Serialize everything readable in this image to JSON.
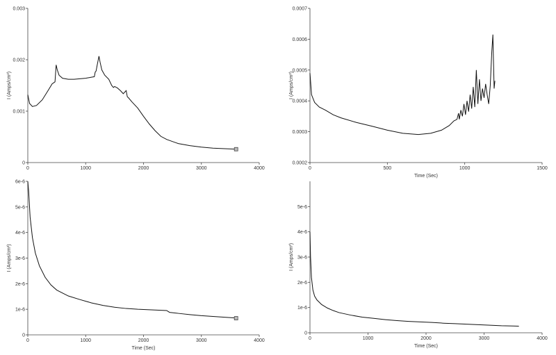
{
  "chart_data": [
    {
      "type": "line",
      "title": "",
      "xlabel": "",
      "ylabel": "I (Amps/cm²)",
      "xlim": [
        0,
        4000
      ],
      "ylim": [
        0,
        0.003
      ],
      "x_ticks": [
        0,
        1000,
        2000,
        3000,
        4000
      ],
      "x_tick_labels": [
        "0",
        "1000",
        "2000",
        "3000",
        "4000"
      ],
      "y_ticks": [
        0,
        0.001,
        0.002,
        0.003
      ],
      "y_tick_labels": [
        "0",
        "0.001",
        "0.002",
        "0.003"
      ],
      "grid": false,
      "end_marker": [
        3600,
        0.00026
      ],
      "series": [
        {
          "x": [
            0,
            30,
            80,
            150,
            250,
            350,
            420,
            470,
            490,
            510,
            540,
            600,
            700,
            800,
            900,
            1000,
            1100,
            1150,
            1165,
            1180,
            1200,
            1230,
            1250,
            1280,
            1330,
            1400,
            1450,
            1480,
            1500,
            1550,
            1600,
            1650,
            1700,
            1720,
            1740,
            1800,
            1900,
            2000,
            2100,
            2200,
            2300,
            2400,
            2500,
            2600,
            2800,
            3000,
            3200,
            3400,
            3600
          ],
          "y": [
            0.00132,
            0.00115,
            0.00109,
            0.00111,
            0.00122,
            0.0014,
            0.00153,
            0.00157,
            0.0019,
            0.0018,
            0.0017,
            0.00164,
            0.00162,
            0.00162,
            0.00163,
            0.00164,
            0.00166,
            0.00167,
            0.00176,
            0.00178,
            0.0019,
            0.00207,
            0.00195,
            0.0018,
            0.0017,
            0.00162,
            0.0015,
            0.00146,
            0.00148,
            0.00145,
            0.0014,
            0.00134,
            0.0014,
            0.00128,
            0.00126,
            0.00118,
            0.00106,
            0.0009,
            0.00075,
            0.00062,
            0.00051,
            0.00045,
            0.00041,
            0.00037,
            0.00033,
            0.0003,
            0.00028,
            0.00027,
            0.00026
          ]
        }
      ]
    },
    {
      "type": "line",
      "title": "",
      "xlabel": "Time (Sec)",
      "ylabel": "I (Amps/cm²)",
      "xlim": [
        0,
        1500
      ],
      "ylim": [
        0.0002,
        0.0007
      ],
      "x_ticks": [
        0,
        500,
        1000,
        1500
      ],
      "x_tick_labels": [
        "0",
        "500",
        "1000",
        "1500"
      ],
      "y_ticks": [
        0.0002,
        0.0003,
        0.0004,
        0.0005,
        0.0006,
        0.0007
      ],
      "y_tick_labels": [
        "0.0002",
        "0.0003",
        "0.0004",
        "0.0005",
        "0.0006",
        "0.0007"
      ],
      "grid": false,
      "series": [
        {
          "x": [
            0,
            10,
            30,
            60,
            100,
            150,
            200,
            300,
            400,
            500,
            600,
            700,
            780,
            850,
            900,
            930,
            950,
            960,
            965,
            975,
            985,
            995,
            1005,
            1015,
            1025,
            1035,
            1045,
            1055,
            1065,
            1075,
            1085,
            1095,
            1105,
            1115,
            1125,
            1135,
            1145,
            1155,
            1165,
            1175,
            1182,
            1190,
            1195
          ],
          "y": [
            0.00049,
            0.00042,
            0.000395,
            0.00038,
            0.00037,
            0.000355,
            0.000345,
            0.00033,
            0.000318,
            0.000305,
            0.000295,
            0.000291,
            0.000295,
            0.000305,
            0.00032,
            0.000335,
            0.00034,
            0.00036,
            0.00034,
            0.00037,
            0.00035,
            0.00039,
            0.000355,
            0.0004,
            0.000365,
            0.00042,
            0.000375,
            0.000445,
            0.00038,
            0.0005,
            0.00039,
            0.00047,
            0.0004,
            0.00044,
            0.00041,
            0.000455,
            0.00042,
            0.00039,
            0.00045,
            0.00056,
            0.000615,
            0.00044,
            0.000465
          ]
        }
      ]
    },
    {
      "type": "line",
      "title": "",
      "xlabel": "Time (Sec)",
      "ylabel": "I (Amps/cm²)",
      "xlim": [
        0,
        4000
      ],
      "ylim": [
        0,
        6e-06
      ],
      "x_ticks": [
        0,
        1000,
        2000,
        3000,
        4000
      ],
      "x_tick_labels": [
        "0",
        "1000",
        "2000",
        "3000",
        "4000"
      ],
      "y_ticks": [
        0,
        1e-06,
        2e-06,
        3e-06,
        4e-06,
        5e-06,
        6e-06
      ],
      "y_tick_labels": [
        "0",
        "1e-6",
        "2e-6",
        "3e-6",
        "4e-6",
        "5e-6",
        "6e-6"
      ],
      "grid": false,
      "end_marker": [
        3600,
        6.5e-07
      ],
      "series": [
        {
          "x": [
            0,
            15,
            40,
            80,
            130,
            200,
            300,
            400,
            500,
            700,
            900,
            1100,
            1300,
            1500,
            1700,
            1900,
            2100,
            2300,
            2400,
            2450,
            2600,
            2800,
            3000,
            3200,
            3400,
            3600
          ],
          "y": [
            6e-06,
            5.6e-06,
            4.6e-06,
            3.8e-06,
            3.2e-06,
            2.7e-06,
            2.25e-06,
            1.95e-06,
            1.75e-06,
            1.52e-06,
            1.38e-06,
            1.25e-06,
            1.15e-06,
            1.08e-06,
            1.03e-06,
            1e-06,
            9.8e-07,
            9.6e-07,
            9.5e-07,
            8.8e-07,
            8.4e-07,
            7.9e-07,
            7.5e-07,
            7.2e-07,
            6.9e-07,
            6.6e-07
          ]
        }
      ]
    },
    {
      "type": "line",
      "title": "",
      "xlabel": "Time (Sec)",
      "ylabel": "I (Amps/cm²)",
      "xlim": [
        0,
        4000
      ],
      "ylim": [
        0,
        6e-06
      ],
      "x_ticks": [
        0,
        1000,
        2000,
        3000,
        4000
      ],
      "x_tick_labels": [
        "0",
        "1000",
        "2000",
        "3000",
        "4000"
      ],
      "y_ticks": [
        0,
        1e-06,
        2e-06,
        3e-06,
        4e-06,
        5e-06
      ],
      "y_tick_labels": [
        "0",
        "1e-6",
        "2e-6",
        "3e-6",
        "4e-6",
        "5e-6"
      ],
      "grid": false,
      "series": [
        {
          "x": [
            0,
            10,
            25,
            50,
            80,
            120,
            200,
            300,
            400,
            500,
            700,
            900,
            1100,
            1300,
            1500,
            1700,
            1900,
            2100,
            2300,
            2500,
            2700,
            2900,
            3100,
            3300,
            3500,
            3600
          ],
          "y": [
            4e-06,
            3e-06,
            2.2e-06,
            1.7e-06,
            1.45e-06,
            1.3e-06,
            1.12e-06,
            9.8e-07,
            8.8e-07,
            8e-07,
            7e-07,
            6.2e-07,
            5.7e-07,
            5.2e-07,
            4.8e-07,
            4.5e-07,
            4.3e-07,
            4.1e-07,
            3.8e-07,
            3.6e-07,
            3.4e-07,
            3.2e-07,
            3e-07,
            2.8e-07,
            2.7e-07,
            2.6e-07
          ]
        }
      ]
    }
  ]
}
